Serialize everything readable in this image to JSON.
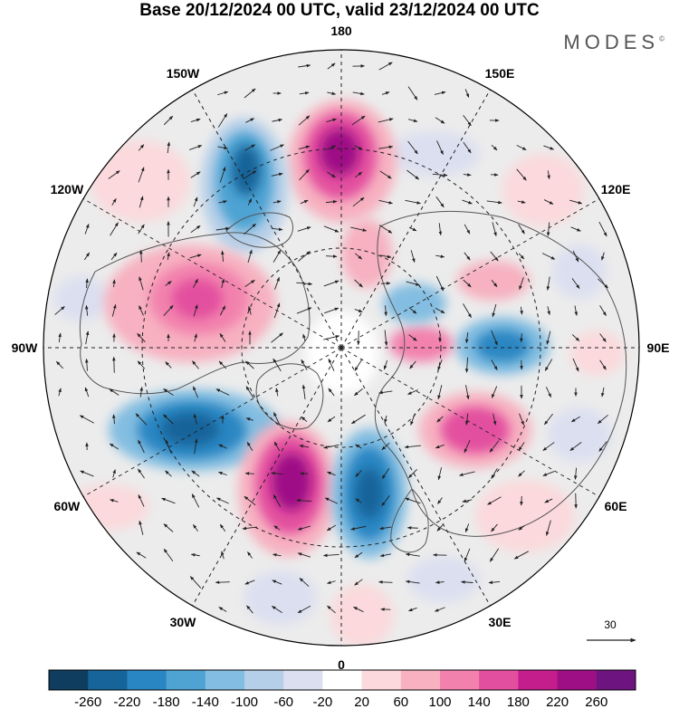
{
  "header": {
    "title": "Base 20/12/2024 00 UTC, valid 23/12/2024 00 UTC",
    "brand": "MODES",
    "brand_mark": "©"
  },
  "map": {
    "projection": "polar-stereographic-north",
    "longitude_labels": [
      "180",
      "150E",
      "120E",
      "90E",
      "60E",
      "30E",
      "0",
      "30W",
      "60W",
      "90W",
      "120W",
      "150W"
    ],
    "vector_reference": {
      "label": "30"
    },
    "colors": {
      "land_outline": "#555555",
      "graticule": "#222222",
      "arrows": "#222222"
    }
  },
  "colorbar": {
    "ticks": [
      "-260",
      "-220",
      "-180",
      "-140",
      "-100",
      "-60",
      "-20",
      "20",
      "60",
      "100",
      "140",
      "180",
      "220",
      "260"
    ],
    "colors": [
      "#0e3d5f",
      "#17649a",
      "#2a86c2",
      "#4ea3d3",
      "#83bde1",
      "#b6cfe8",
      "#dcdff0",
      "#ffffff",
      "#fbd9dc",
      "#f7b1c0",
      "#f282ad",
      "#e34f9f",
      "#c41d8c",
      "#9e0f86",
      "#6e1480"
    ]
  }
}
